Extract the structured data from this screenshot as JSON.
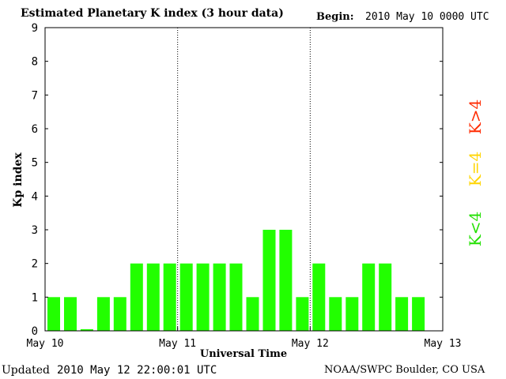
{
  "header": {
    "title": "Estimated Planetary K index (3 hour data)",
    "begin_label": "Begin:",
    "begin_value": "2010 May 10 0000 UTC"
  },
  "footer": {
    "updated_label": "Updated",
    "updated_value": "2010 May 12 22:00:01 UTC",
    "credit": "NOAA/SWPC Boulder, CO USA"
  },
  "legend": {
    "items": [
      {
        "label": "K>4",
        "color": "#ff2a00"
      },
      {
        "label": "K=4",
        "color": "#ffd500"
      },
      {
        "label": "K<4",
        "color": "#22e000"
      }
    ]
  },
  "chart_data": {
    "type": "bar",
    "xlabel": "Universal Time",
    "ylabel": "Kp index",
    "ylim": [
      0,
      9
    ],
    "yticks": [
      "0",
      "1",
      "2",
      "3",
      "4",
      "5",
      "6",
      "7",
      "8",
      "9"
    ],
    "x_tick_labels": [
      "May 10",
      "May 11",
      "May 12",
      "May 13"
    ],
    "bars_per_day": 8,
    "days": 3,
    "values": [
      1,
      1,
      0.05,
      1,
      1,
      2,
      2,
      2,
      2,
      2,
      2,
      2,
      1,
      3,
      3,
      1,
      2,
      1,
      1,
      2,
      2,
      1,
      1
    ],
    "bar_color": "#22ff00",
    "grid": "vertical dotted lines at day boundaries"
  }
}
